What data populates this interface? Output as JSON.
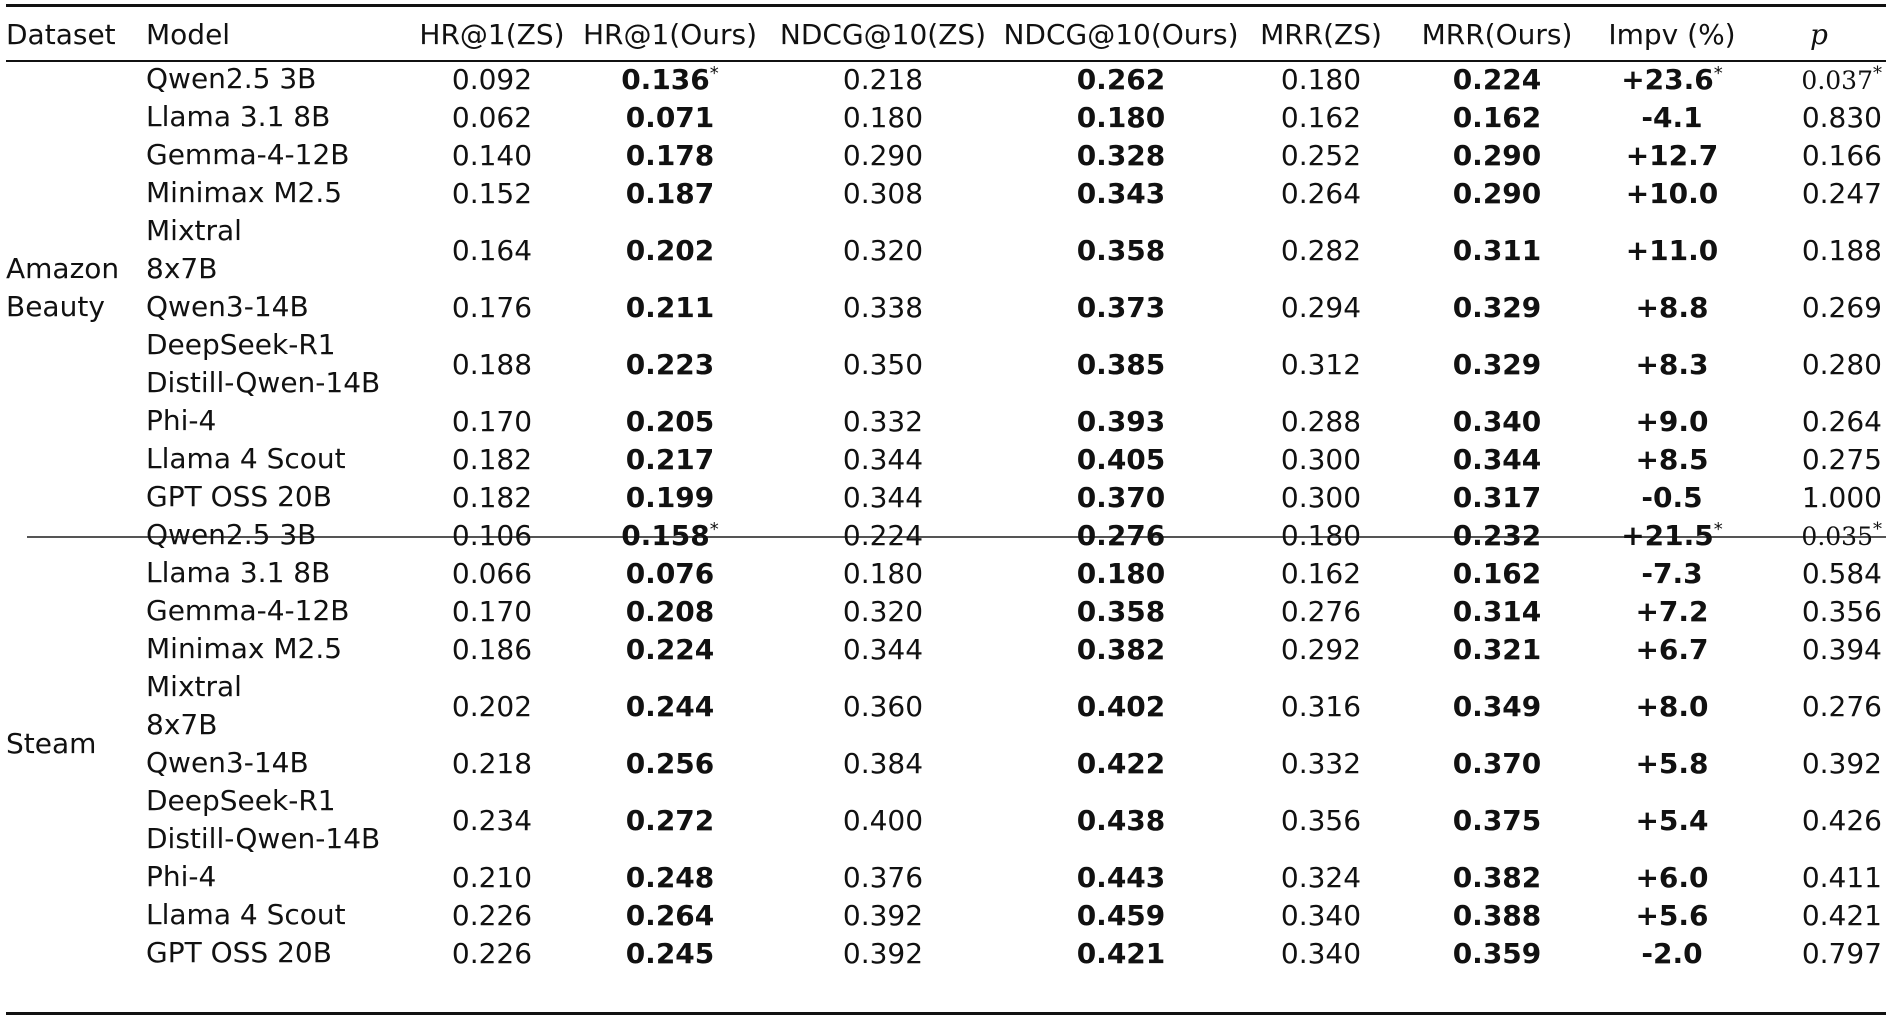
{
  "headers": [
    "Dataset",
    "Model",
    "HR@1(ZS)",
    "HR@1(Ours)",
    "NDCG@10(ZS)",
    "NDCG@10(Ours)",
    "MRR(ZS)",
    "MRR(Ours)",
    "Impv (%)",
    "p"
  ],
  "groups": [
    {
      "dataset": "Amazon\nBeauty",
      "rows": [
        {
          "model": "Qwen2.5 3B",
          "hr_zs": "0.092",
          "hr_ours": "0.136",
          "hr_star": "*",
          "ndcg_zs": "0.218",
          "ndcg_ours": "0.262",
          "mrr_zs": "0.180",
          "mrr_ours": "0.224",
          "impv": "+23.6",
          "impv_star": "*",
          "p": "0.037",
          "p_star": "*"
        },
        {
          "model": "Llama 3.1 8B",
          "hr_zs": "0.062",
          "hr_ours": "0.071",
          "hr_star": "",
          "ndcg_zs": "0.180",
          "ndcg_ours": "0.180",
          "mrr_zs": "0.162",
          "mrr_ours": "0.162",
          "impv": "-4.1",
          "impv_star": "",
          "p": "0.830",
          "p_star": ""
        },
        {
          "model": "Gemma-4-12B",
          "hr_zs": "0.140",
          "hr_ours": "0.178",
          "hr_star": "",
          "ndcg_zs": "0.290",
          "ndcg_ours": "0.328",
          "mrr_zs": "0.252",
          "mrr_ours": "0.290",
          "impv": "+12.7",
          "impv_star": "",
          "p": "0.166",
          "p_star": ""
        },
        {
          "model": "Minimax M2.5",
          "hr_zs": "0.152",
          "hr_ours": "0.187",
          "hr_star": "",
          "ndcg_zs": "0.308",
          "ndcg_ours": "0.343",
          "mrr_zs": "0.264",
          "mrr_ours": "0.290",
          "impv": "+10.0",
          "impv_star": "",
          "p": "0.247",
          "p_star": ""
        },
        {
          "model": "Mixtral\n8x7B",
          "hr_zs": "0.164",
          "hr_ours": "0.202",
          "hr_star": "",
          "ndcg_zs": "0.320",
          "ndcg_ours": "0.358",
          "mrr_zs": "0.282",
          "mrr_ours": "0.311",
          "impv": "+11.0",
          "impv_star": "",
          "p": "0.188",
          "p_star": ""
        },
        {
          "model": "Qwen3-14B",
          "hr_zs": "0.176",
          "hr_ours": "0.211",
          "hr_star": "",
          "ndcg_zs": "0.338",
          "ndcg_ours": "0.373",
          "mrr_zs": "0.294",
          "mrr_ours": "0.329",
          "impv": "+8.8",
          "impv_star": "",
          "p": "0.269",
          "p_star": ""
        },
        {
          "model": "DeepSeek-R1\nDistill-Qwen-14B",
          "hr_zs": "0.188",
          "hr_ours": "0.223",
          "hr_star": "",
          "ndcg_zs": "0.350",
          "ndcg_ours": "0.385",
          "mrr_zs": "0.312",
          "mrr_ours": "0.329",
          "impv": "+8.3",
          "impv_star": "",
          "p": "0.280",
          "p_star": ""
        },
        {
          "model": "Phi-4",
          "hr_zs": "0.170",
          "hr_ours": "0.205",
          "hr_star": "",
          "ndcg_zs": "0.332",
          "ndcg_ours": "0.393",
          "mrr_zs": "0.288",
          "mrr_ours": "0.340",
          "impv": "+9.0",
          "impv_star": "",
          "p": "0.264",
          "p_star": ""
        },
        {
          "model": "Llama 4 Scout",
          "hr_zs": "0.182",
          "hr_ours": "0.217",
          "hr_star": "",
          "ndcg_zs": "0.344",
          "ndcg_ours": "0.405",
          "mrr_zs": "0.300",
          "mrr_ours": "0.344",
          "impv": "+8.5",
          "impv_star": "",
          "p": "0.275",
          "p_star": ""
        },
        {
          "model": "GPT OSS 20B",
          "hr_zs": "0.182",
          "hr_ours": "0.199",
          "hr_star": "",
          "ndcg_zs": "0.344",
          "ndcg_ours": "0.370",
          "mrr_zs": "0.300",
          "mrr_ours": "0.317",
          "impv": "-0.5",
          "impv_star": "",
          "p": "1.000",
          "p_star": ""
        }
      ]
    },
    {
      "dataset": "Steam",
      "rows": [
        {
          "model": "Qwen2.5 3B",
          "hr_zs": "0.106",
          "hr_ours": "0.158",
          "hr_star": "*",
          "ndcg_zs": "0.224",
          "ndcg_ours": "0.276",
          "mrr_zs": "0.180",
          "mrr_ours": "0.232",
          "impv": "+21.5",
          "impv_star": "*",
          "p": "0.035",
          "p_star": "*"
        },
        {
          "model": "Llama 3.1 8B",
          "hr_zs": "0.066",
          "hr_ours": "0.076",
          "hr_star": "",
          "ndcg_zs": "0.180",
          "ndcg_ours": "0.180",
          "mrr_zs": "0.162",
          "mrr_ours": "0.162",
          "impv": "-7.3",
          "impv_star": "",
          "p": "0.584",
          "p_star": ""
        },
        {
          "model": "Gemma-4-12B",
          "hr_zs": "0.170",
          "hr_ours": "0.208",
          "hr_star": "",
          "ndcg_zs": "0.320",
          "ndcg_ours": "0.358",
          "mrr_zs": "0.276",
          "mrr_ours": "0.314",
          "impv": "+7.2",
          "impv_star": "",
          "p": "0.356",
          "p_star": ""
        },
        {
          "model": "Minimax M2.5",
          "hr_zs": "0.186",
          "hr_ours": "0.224",
          "hr_star": "",
          "ndcg_zs": "0.344",
          "ndcg_ours": "0.382",
          "mrr_zs": "0.292",
          "mrr_ours": "0.321",
          "impv": "+6.7",
          "impv_star": "",
          "p": "0.394",
          "p_star": ""
        },
        {
          "model": "Mixtral\n8x7B",
          "hr_zs": "0.202",
          "hr_ours": "0.244",
          "hr_star": "",
          "ndcg_zs": "0.360",
          "ndcg_ours": "0.402",
          "mrr_zs": "0.316",
          "mrr_ours": "0.349",
          "impv": "+8.0",
          "impv_star": "",
          "p": "0.276",
          "p_star": ""
        },
        {
          "model": "Qwen3-14B",
          "hr_zs": "0.218",
          "hr_ours": "0.256",
          "hr_star": "",
          "ndcg_zs": "0.384",
          "ndcg_ours": "0.422",
          "mrr_zs": "0.332",
          "mrr_ours": "0.370",
          "impv": "+5.8",
          "impv_star": "",
          "p": "0.392",
          "p_star": ""
        },
        {
          "model": "DeepSeek-R1\nDistill-Qwen-14B",
          "hr_zs": "0.234",
          "hr_ours": "0.272",
          "hr_star": "",
          "ndcg_zs": "0.400",
          "ndcg_ours": "0.438",
          "mrr_zs": "0.356",
          "mrr_ours": "0.375",
          "impv": "+5.4",
          "impv_star": "",
          "p": "0.426",
          "p_star": ""
        },
        {
          "model": "Phi-4",
          "hr_zs": "0.210",
          "hr_ours": "0.248",
          "hr_star": "",
          "ndcg_zs": "0.376",
          "ndcg_ours": "0.443",
          "mrr_zs": "0.324",
          "mrr_ours": "0.382",
          "impv": "+6.0",
          "impv_star": "",
          "p": "0.411",
          "p_star": ""
        },
        {
          "model": "Llama 4 Scout",
          "hr_zs": "0.226",
          "hr_ours": "0.264",
          "hr_star": "",
          "ndcg_zs": "0.392",
          "ndcg_ours": "0.459",
          "mrr_zs": "0.340",
          "mrr_ours": "0.388",
          "impv": "+5.6",
          "impv_star": "",
          "p": "0.421",
          "p_star": ""
        },
        {
          "model": "GPT OSS 20B",
          "hr_zs": "0.226",
          "hr_ours": "0.245",
          "hr_star": "",
          "ndcg_zs": "0.392",
          "ndcg_ours": "0.421",
          "mrr_zs": "0.340",
          "mrr_ours": "0.359",
          "impv": "-2.0",
          "impv_star": "",
          "p": "0.797",
          "p_star": ""
        }
      ]
    }
  ]
}
